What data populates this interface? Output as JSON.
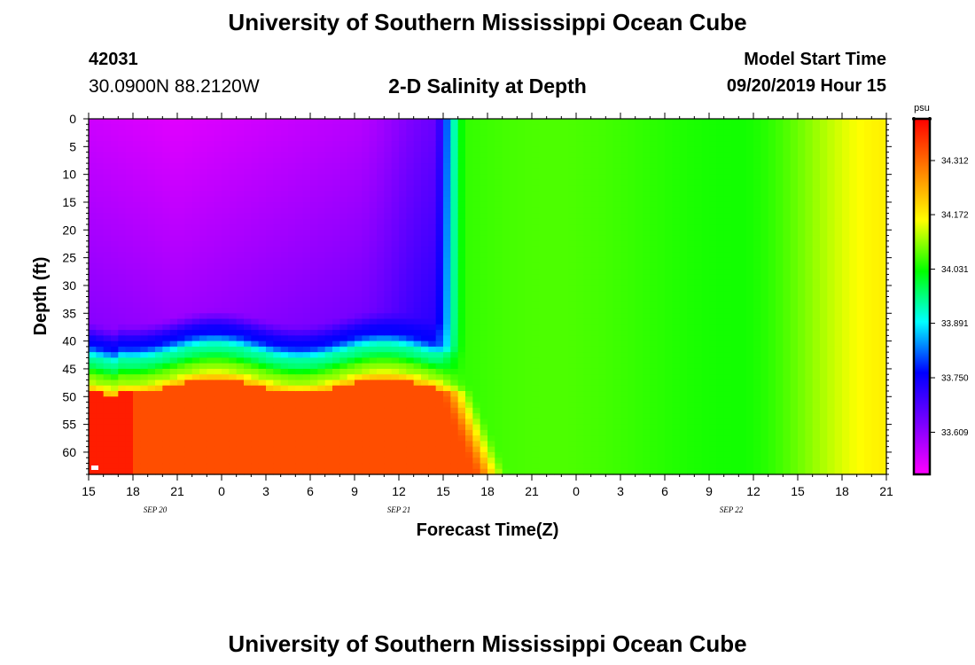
{
  "header": {
    "title": "University of Southern Mississippi Ocean Cube",
    "station_id": "42031",
    "station_coords": "30.0900N 88.2120W",
    "plot_title": "2-D Salinity at Depth",
    "model_start_label": "Model Start Time",
    "model_start_value": "09/20/2019 Hour 15"
  },
  "footer": {
    "title": "University of Southern Mississippi Ocean Cube"
  },
  "colors": {
    "stops": [
      "#ff00ff",
      "#7b00ff",
      "#0000ff",
      "#00ffff",
      "#00ff00",
      "#ffff00",
      "#ff8000",
      "#ff0000"
    ]
  },
  "chart_data": {
    "type": "heatmap",
    "variable": "salinity",
    "title": "2-D Salinity at Depth",
    "xlabel": "Forecast Time(Z)",
    "ylabel": "Depth (ft)",
    "x_tick_labels": [
      "15",
      "18",
      "21",
      "0",
      "3",
      "6",
      "9",
      "12",
      "15",
      "18",
      "21",
      "0",
      "3",
      "6",
      "9",
      "12",
      "15",
      "18",
      "21"
    ],
    "x_date_labels": [
      {
        "label": "SEP 20",
        "tick_index": 1.5
      },
      {
        "label": "SEP 21",
        "tick_index": 7
      },
      {
        "label": "SEP 22",
        "tick_index": 14.5
      }
    ],
    "x_range_hours": [
      0,
      54
    ],
    "y_ticks": [
      0,
      5,
      10,
      15,
      20,
      25,
      30,
      35,
      40,
      45,
      50,
      55,
      60
    ],
    "y_range_ft": [
      0,
      64
    ],
    "colorbar": {
      "unit": "psu",
      "tick_labels": [
        "34.312",
        "34.172",
        "34.031",
        "33.891",
        "33.750",
        "33.609"
      ],
      "range": [
        33.5,
        34.42
      ]
    },
    "fields": {
      "upper_layer": {
        "depth_ft": [
          0,
          37
        ],
        "hours": [
          0,
          23
        ],
        "salinity_range": [
          33.52,
          33.68
        ]
      },
      "halocline": {
        "depth_ft": [
          37,
          47
        ],
        "salinity_range": [
          33.75,
          34.15
        ]
      },
      "lower_layer": {
        "depth_ft": [
          47,
          64
        ],
        "hours": [
          0,
          23
        ],
        "salinity_range": [
          34.25,
          34.38
        ]
      },
      "after_mixing": {
        "hours": [
          26,
          54
        ],
        "salinity_range": [
          34.0,
          34.16
        ]
      }
    }
  }
}
